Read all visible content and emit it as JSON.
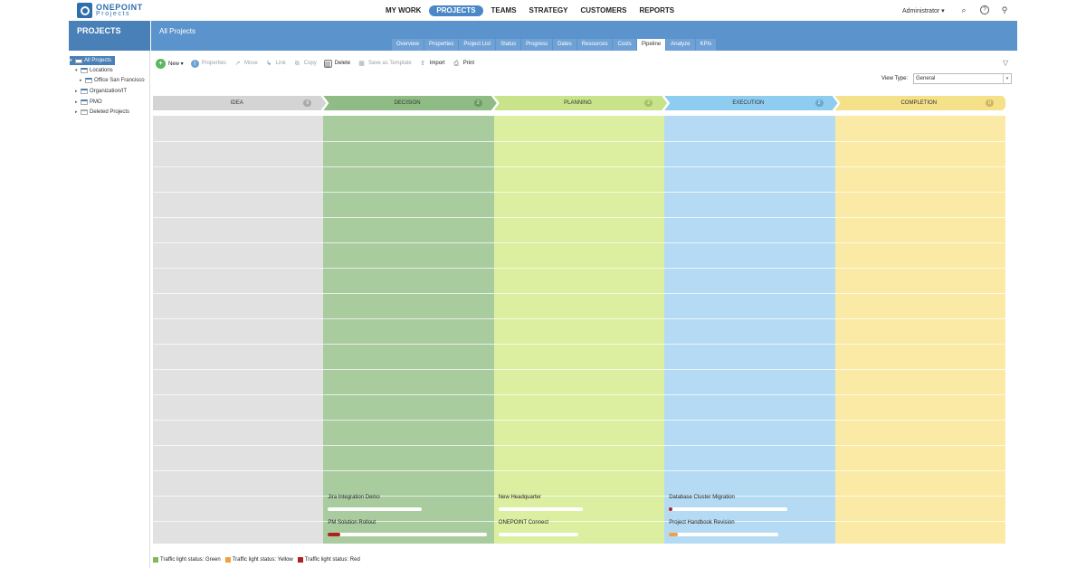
{
  "brand": {
    "line1": "ONEPOINT",
    "line2": "Projects"
  },
  "nav": [
    "MY WORK",
    "PROJECTS",
    "TEAMS",
    "STRATEGY",
    "CUSTOMERS",
    "REPORTS"
  ],
  "user": "Administrator ▾",
  "section_title": "PROJECTS",
  "page_title": "All Projects",
  "tabs": [
    "Overview",
    "Properties",
    "Project List",
    "Status",
    "Progress",
    "Dates",
    "Resources",
    "Costs",
    "Pipeline",
    "Analyze",
    "KPIs"
  ],
  "active_tab": "Pipeline",
  "tree": [
    {
      "label": "All Projects",
      "selected": true
    },
    {
      "label": "Locations"
    },
    {
      "label": "Office San Francisco"
    },
    {
      "label": "Organization/IT"
    },
    {
      "label": "PMO"
    },
    {
      "label": "Deleted Projects"
    }
  ],
  "toolbar": {
    "new": "New ▾",
    "properties": "Properties",
    "move": "Move",
    "link": "Link",
    "copy": "Copy",
    "delete": "Delete",
    "save_template": "Save as Template",
    "import": "Import",
    "print": "Print"
  },
  "view_type": {
    "label": "View Type:",
    "value": "General"
  },
  "stages": [
    {
      "name": "IDEA",
      "count": "0",
      "head": "#d4d4d4",
      "body": "#e1e1e1",
      "badge": "#aaaaaa"
    },
    {
      "name": "DECISION",
      "count": "2",
      "head": "#8fbb84",
      "body": "#a9cc9f",
      "badge": "#6c9a63"
    },
    {
      "name": "PLANNING",
      "count": "2",
      "head": "#c8e38a",
      "body": "#dcee9f",
      "badge": "#a6c268"
    },
    {
      "name": "EXECUTION",
      "count": "2",
      "head": "#8fcdf0",
      "body": "#b5dbf4",
      "badge": "#6aa9cc"
    },
    {
      "name": "COMPLETION",
      "count": "0",
      "head": "#f5e18a",
      "body": "#faeaa6",
      "badge": "#cfb75d"
    }
  ],
  "cards": [
    {
      "stage": 1,
      "slot": 0,
      "name": "Jira Integration Demo",
      "progress": 0,
      "status": ""
    },
    {
      "stage": 1,
      "slot": 1,
      "name": "PM Solution Rollout",
      "progress": 0.08,
      "status": "red"
    },
    {
      "stage": 2,
      "slot": 0,
      "name": "New Headquarter",
      "progress": 0,
      "status": ""
    },
    {
      "stage": 2,
      "slot": 1,
      "name": "ONEPOINT Connect",
      "progress": 0,
      "status": ""
    },
    {
      "stage": 3,
      "slot": 0,
      "name": "Database Cluster Migration",
      "progress": 0.03,
      "status": "red"
    },
    {
      "stage": 3,
      "slot": 1,
      "name": "Project Handbook Revision",
      "progress": 0.08,
      "status": "yellow"
    }
  ],
  "legend": [
    {
      "label": "Traffic light status: Green",
      "color": "#7cba5c"
    },
    {
      "label": "Traffic light status: Yellow",
      "color": "#f0a040"
    },
    {
      "label": "Traffic light status: Red",
      "color": "#b02020"
    }
  ],
  "status_colors": {
    "red": "#b02020",
    "yellow": "#f0a040",
    "green": "#7cba5c"
  }
}
